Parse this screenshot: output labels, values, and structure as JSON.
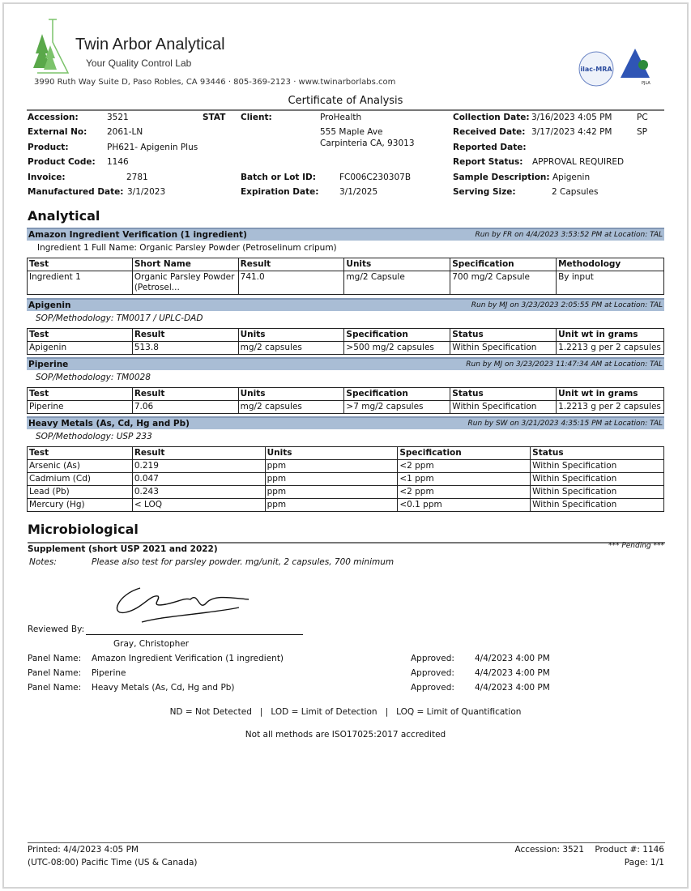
{
  "header": {
    "brand": "Twin Arbor Analytical",
    "tagline": "Your Quality Control Lab",
    "address": "3990 Ruth Way Suite D, Paso Robles, CA 93446  ·  805-369-2123  ·  www.twinarborlabs.com",
    "title": "Certificate of Analysis",
    "logos": [
      "ilac-MRA",
      "PJLA"
    ],
    "brand_color": "#5aa84a"
  },
  "info": {
    "accession_label": "Accession:",
    "accession": "3521",
    "stat": "STAT",
    "external_label": "External No:",
    "external": "2061-LN",
    "product_label": "Product:",
    "product": "PH621- Apigenin Plus",
    "code_label": "Product Code:",
    "code": "1146",
    "invoice_label": "Invoice:",
    "invoice": "2781",
    "mfg_label": "Manufactured Date:",
    "mfg": "3/1/2023",
    "client_label": "Client:",
    "client": "ProHealth",
    "client_addr1": "555 Maple Ave",
    "client_addr2": "Carpinteria CA, 93013",
    "batch_label": "Batch or Lot ID:",
    "batch": "FC006C230307B",
    "exp_label": "Expiration Date:",
    "exp": "3/1/2025",
    "collection_label": "Collection Date:",
    "collection": "3/16/2023 4:05 PM",
    "collection_code": "PC",
    "received_label": "Received Date:",
    "received": "3/17/2023 4:42 PM",
    "received_code": "SP",
    "reported_label": "Reported Date:",
    "status_label": "Report Status:",
    "status": "APPROVAL REQUIRED",
    "sample_label": "Sample Description:",
    "sample": "Apigenin",
    "serving_label": "Serving Size:",
    "serving": "2 Capsules"
  },
  "analytical": {
    "heading": "Analytical",
    "sections": [
      {
        "title": "Amazon Ingredient Verification (1 ingredient)",
        "run": "Run by FR on 4/4/2023 3:53:52 PM at Location: TAL",
        "note": "Ingredient 1 Full Name: Organic Parsley Powder (Petroselinum cripum)",
        "columns": [
          "Test",
          "Short Name",
          "Result",
          "Units",
          "Specification",
          "Methodology"
        ],
        "rows": [
          [
            "Ingredient 1",
            "Organic Parsley Powder (Petrosel...",
            "741.0",
            "mg/2 Capsule",
            "700 mg/2 Capsule",
            "By input"
          ]
        ]
      },
      {
        "title": "Apigenin",
        "run": "Run by MJ on 3/23/2023 2:05:55 PM at Location: TAL",
        "note": "SOP/Methodology: TM0017 / UPLC-DAD",
        "columns": [
          "Test",
          "Result",
          "Units",
          "Specification",
          "Status",
          "Unit wt in grams"
        ],
        "rows": [
          [
            "Apigenin",
            "513.8",
            "mg/2 capsules",
            ">500 mg/2 capsules",
            "Within Specification",
            "1.2213 g per 2 capsules"
          ]
        ]
      },
      {
        "title": "Piperine",
        "run": "Run by MJ on 3/23/2023 11:47:34 AM at Location: TAL",
        "note": "SOP/Methodology: TM0028",
        "columns": [
          "Test",
          "Result",
          "Units",
          "Specification",
          "Status",
          "Unit wt in grams"
        ],
        "rows": [
          [
            "Piperine",
            "7.06",
            "mg/2 capsules",
            ">7 mg/2 capsules",
            "Within Specification",
            "1.2213 g per 2 capsules"
          ]
        ]
      },
      {
        "title": "Heavy Metals (As, Cd, Hg and Pb)",
        "run": "Run by SW on 3/21/2023 4:35:15 PM at Location: TAL",
        "note": "SOP/Methodology: USP 233",
        "columns": [
          "Test",
          "Result",
          "Units",
          "Specification",
          "Status"
        ],
        "rows": [
          [
            "Arsenic (As)",
            "0.219",
            "ppm",
            "<2 ppm",
            "Within Specification"
          ],
          [
            "Cadmium (Cd)",
            "0.047",
            "ppm",
            "<1 ppm",
            "Within Specification"
          ],
          [
            "Lead (Pb)",
            "0.243",
            "ppm",
            "<2 ppm",
            "Within Specification"
          ],
          [
            "Mercury (Hg)",
            "< LOQ",
            "ppm",
            "<0.1 ppm",
            "Within Specification"
          ]
        ]
      }
    ]
  },
  "micro": {
    "heading": "Microbiological",
    "supplement": "Supplement (short USP 2021 and 2022)",
    "pending": "*** Pending ***",
    "notes_label": "Notes:",
    "notes": "Please also test for parsley powder. mg/unit, 2 capsules, 700 minimum"
  },
  "review": {
    "label": "Reviewed By:",
    "name": "Gray, Christopher",
    "panels": [
      {
        "label": "Panel Name:",
        "name": "Amazon Ingredient Verification (1 ingredient)",
        "approved_label": "Approved:",
        "date": "4/4/2023 4:00 PM"
      },
      {
        "label": "Panel Name:",
        "name": "Piperine",
        "approved_label": "Approved:",
        "date": "4/4/2023 4:00 PM"
      },
      {
        "label": "Panel Name:",
        "name": "Heavy Metals (As, Cd, Hg and Pb)",
        "approved_label": "Approved:",
        "date": "4/4/2023 4:00 PM"
      }
    ],
    "legend": "ND = Not Detected   |   LOD = Limit of Detection   |   LOQ = Limit of Quantification",
    "accred": "Not all methods are ISO17025:2017 accredited"
  },
  "footer": {
    "printed": "Printed: 4/4/2023 4:05 PM",
    "tz": "(UTC-08:00) Pacific Time (US & Canada)",
    "accession": "Accession: 3521    Product #: 1146",
    "page": "Page: 1/1"
  }
}
